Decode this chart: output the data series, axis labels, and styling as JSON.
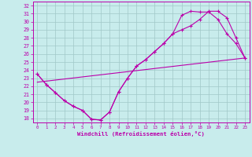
{
  "xlabel": "Windchill (Refroidissement éolien,°C)",
  "bg_color": "#c8ecec",
  "grid_color": "#a0c8c8",
  "line_color": "#bb00aa",
  "xlim": [
    -0.5,
    23.5
  ],
  "ylim": [
    17.5,
    32.5
  ],
  "xticks": [
    0,
    1,
    2,
    3,
    4,
    5,
    6,
    7,
    8,
    9,
    10,
    11,
    12,
    13,
    14,
    15,
    16,
    17,
    18,
    19,
    20,
    21,
    22,
    23
  ],
  "yticks": [
    18,
    19,
    20,
    21,
    22,
    23,
    24,
    25,
    26,
    27,
    28,
    29,
    30,
    31,
    32
  ],
  "line1_x": [
    0,
    1,
    2,
    3,
    4,
    5,
    6,
    7,
    8,
    9,
    10,
    11,
    12,
    13,
    14,
    15,
    16,
    17,
    18,
    19,
    20,
    21,
    22,
    23
  ],
  "line1_y": [
    23.5,
    22.2,
    21.2,
    20.2,
    19.5,
    19.0,
    17.9,
    17.8,
    18.8,
    21.3,
    23.0,
    24.5,
    25.3,
    26.3,
    27.3,
    28.5,
    29.0,
    29.5,
    30.3,
    31.3,
    31.3,
    30.5,
    28.0,
    25.5
  ],
  "line2_x": [
    0,
    23
  ],
  "line2_y": [
    22.5,
    25.5
  ],
  "line3_x": [
    0,
    1,
    2,
    3,
    4,
    5,
    6,
    7,
    8,
    9,
    10,
    11,
    12,
    13,
    14,
    15,
    16,
    17,
    18,
    19,
    20,
    21,
    22,
    23
  ],
  "line3_y": [
    23.5,
    22.2,
    21.2,
    20.2,
    19.5,
    19.0,
    17.9,
    17.8,
    18.8,
    21.3,
    23.0,
    24.5,
    25.3,
    26.3,
    27.3,
    28.5,
    30.8,
    31.3,
    31.2,
    31.2,
    30.3,
    28.5,
    27.3,
    25.5
  ]
}
